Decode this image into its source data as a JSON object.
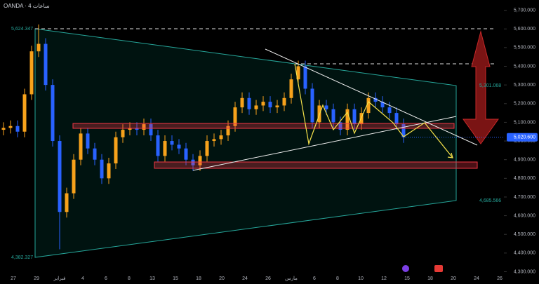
{
  "chart_data": {
    "type": "candlestick",
    "title": "OANDA · 4 ساعات",
    "up_color": "#f7a21b",
    "down_color": "#2962ff",
    "open": [
      5060,
      5070,
      5080,
      5050,
      5250,
      5480,
      5520,
      5300,
      5000,
      4620,
      4720,
      4900,
      5040,
      4960,
      4900,
      4800,
      4880,
      5020,
      5060,
      5070,
      5060,
      5090,
      5030,
      4920,
      5000,
      4980,
      4960,
      4900,
      4870,
      4920,
      5000,
      5010,
      5030,
      5080,
      5180,
      5230,
      5170,
      5190,
      5210,
      5180,
      5190,
      5230,
      5330,
      5400,
      5280,
      5100,
      5190,
      5170,
      5100,
      5060,
      5170,
      5090,
      5150,
      5230,
      5210,
      5180,
      5150,
      5090
    ],
    "high": [
      5100,
      5110,
      5110,
      5280,
      5510,
      5624,
      5550,
      5330,
      5030,
      4750,
      4930,
      5070,
      5070,
      4990,
      4930,
      4910,
      5050,
      5090,
      5100,
      5100,
      5120,
      5120,
      5060,
      5030,
      5030,
      5010,
      4990,
      4930,
      4950,
      5030,
      5040,
      5060,
      5110,
      5210,
      5260,
      5260,
      5220,
      5240,
      5240,
      5220,
      5260,
      5360,
      5430,
      5430,
      5310,
      5220,
      5220,
      5200,
      5130,
      5200,
      5200,
      5180,
      5260,
      5260,
      5240,
      5210,
      5180,
      5120
    ],
    "low": [
      5030,
      5040,
      5020,
      5020,
      5220,
      5450,
      5270,
      4970,
      4420,
      4590,
      4690,
      4870,
      4930,
      4870,
      4770,
      4770,
      4850,
      4990,
      5030,
      5030,
      5030,
      5000,
      4890,
      4890,
      4950,
      4930,
      4870,
      4840,
      4840,
      4890,
      4970,
      4980,
      5000,
      5050,
      5150,
      5140,
      5140,
      5160,
      5150,
      5150,
      5160,
      5200,
      5300,
      5250,
      5070,
      5070,
      5140,
      5070,
      5030,
      5030,
      5060,
      5060,
      5120,
      5180,
      5150,
      5120,
      5060,
      4990
    ],
    "close": [
      5070,
      5080,
      5050,
      5250,
      5480,
      5520,
      5300,
      5000,
      4620,
      4720,
      4900,
      5040,
      4960,
      4900,
      4800,
      4880,
      5020,
      5060,
      5070,
      5060,
      5090,
      5030,
      4920,
      5000,
      4980,
      4960,
      4900,
      4870,
      4920,
      5000,
      5010,
      5030,
      5080,
      5180,
      5230,
      5170,
      5190,
      5210,
      5180,
      5190,
      5230,
      5330,
      5400,
      5280,
      5100,
      5190,
      5170,
      5100,
      5060,
      5170,
      5090,
      5150,
      5230,
      5210,
      5180,
      5150,
      5090,
      5020
    ],
    "ylim": [
      4300,
      5700
    ],
    "yticks": [
      {
        "value": 4300,
        "label": "4,300.000"
      },
      {
        "value": 4400,
        "label": "4,400.000"
      },
      {
        "value": 4500,
        "label": "4,500.000"
      },
      {
        "value": 4600,
        "label": "4,600.000"
      },
      {
        "value": 4700,
        "label": "4,700.000"
      },
      {
        "value": 4800,
        "label": "4,800.000"
      },
      {
        "value": 4900,
        "label": "4,900.000"
      },
      {
        "value": 5000,
        "label": "5,000.000"
      },
      {
        "value": 5100,
        "label": "5,100.000"
      },
      {
        "value": 5200,
        "label": "5,200.000"
      },
      {
        "value": 5300,
        "label": "5,300.000"
      },
      {
        "value": 5400,
        "label": "5,400.000"
      },
      {
        "value": 5500,
        "label": "5,500.000"
      },
      {
        "value": 5600,
        "label": "5,600.000"
      },
      {
        "value": 5700,
        "label": "5,700.000"
      }
    ],
    "x_labels": [
      "27",
      "29",
      "فبراير",
      "4",
      "6",
      "8",
      "13",
      "15",
      "18",
      "20",
      "24",
      "26",
      "مارس",
      "6",
      "8",
      "10",
      "12",
      "15",
      "18",
      "20",
      "24",
      "26"
    ],
    "annotations": [
      "5,624.347",
      "4,382.327",
      "5,301.068",
      "4,685.566"
    ],
    "last_price_label": "5,020.600"
  }
}
